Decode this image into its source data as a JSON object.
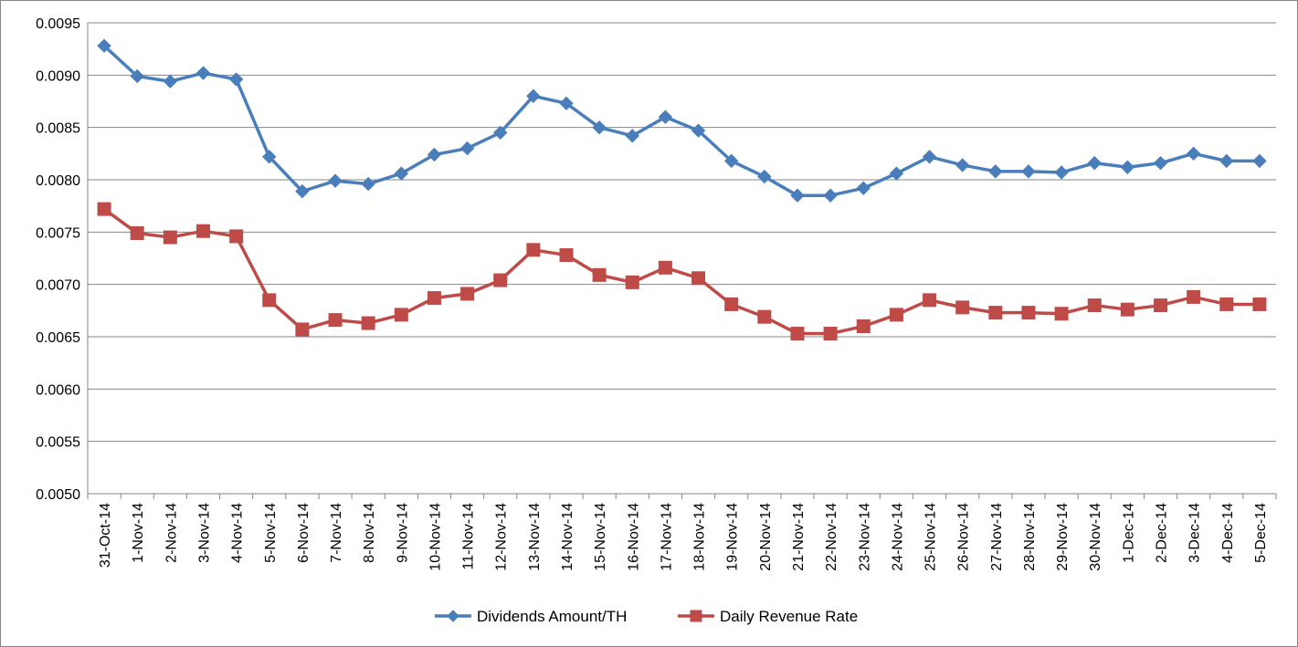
{
  "chart_data": {
    "type": "line",
    "title": "",
    "xlabel": "",
    "ylabel": "",
    "ylim": [
      0.005,
      0.0095
    ],
    "y_ticks": [
      "0.0050",
      "0.0055",
      "0.0060",
      "0.0065",
      "0.0070",
      "0.0075",
      "0.0080",
      "0.0085",
      "0.0090",
      "0.0095"
    ],
    "y_tick_values": [
      0.005,
      0.0055,
      0.006,
      0.0065,
      0.007,
      0.0075,
      0.008,
      0.0085,
      0.009,
      0.0095
    ],
    "grid": "horizontal",
    "legend_position": "bottom",
    "categories": [
      "31-Oct-14",
      "1-Nov-14",
      "2-Nov-14",
      "3-Nov-14",
      "4-Nov-14",
      "5-Nov-14",
      "6-Nov-14",
      "7-Nov-14",
      "8-Nov-14",
      "9-Nov-14",
      "10-Nov-14",
      "11-Nov-14",
      "12-Nov-14",
      "13-Nov-14",
      "14-Nov-14",
      "15-Nov-14",
      "16-Nov-14",
      "17-Nov-14",
      "18-Nov-14",
      "19-Nov-14",
      "20-Nov-14",
      "21-Nov-14",
      "22-Nov-14",
      "23-Nov-14",
      "24-Nov-14",
      "25-Nov-14",
      "26-Nov-14",
      "27-Nov-14",
      "28-Nov-14",
      "29-Nov-14",
      "30-Nov-14",
      "1-Dec-14",
      "2-Dec-14",
      "3-Dec-14",
      "4-Dec-14",
      "5-Dec-14"
    ],
    "series": [
      {
        "name": "Dividends Amount/TH",
        "color": "#4a7ebb",
        "marker": "diamond",
        "values": [
          0.00928,
          0.00899,
          0.00894,
          0.00902,
          0.00896,
          0.00822,
          0.00789,
          0.00799,
          0.00796,
          0.00806,
          0.00824,
          0.0083,
          0.00845,
          0.0088,
          0.00873,
          0.0085,
          0.00842,
          0.0086,
          0.00847,
          0.00818,
          0.00803,
          0.00785,
          0.00785,
          0.00792,
          0.00806,
          0.00822,
          0.00814,
          0.00808,
          0.00808,
          0.00807,
          0.00816,
          0.00812,
          0.00816,
          0.00825,
          0.00818,
          0.00818
        ]
      },
      {
        "name": "Daily Revenue Rate",
        "color": "#be4b48",
        "marker": "square",
        "values": [
          0.00772,
          0.00749,
          0.00745,
          0.00751,
          0.00746,
          0.00685,
          0.00657,
          0.00666,
          0.00663,
          0.00671,
          0.00687,
          0.00691,
          0.00704,
          0.00733,
          0.00728,
          0.00709,
          0.00702,
          0.00716,
          0.00706,
          0.00681,
          0.00669,
          0.00653,
          0.00653,
          0.0066,
          0.00671,
          0.00685,
          0.00678,
          0.00673,
          0.00673,
          0.00672,
          0.0068,
          0.00676,
          0.0068,
          0.00688,
          0.00681,
          0.00681
        ]
      }
    ]
  }
}
